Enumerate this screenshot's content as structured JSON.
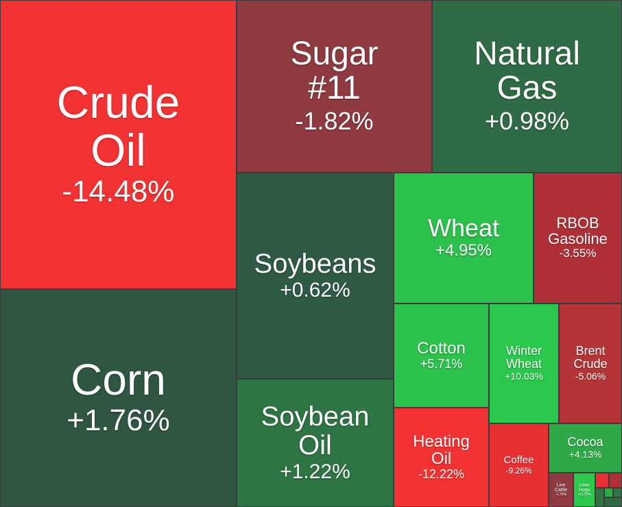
{
  "chart_data": {
    "type": "treemap",
    "categories": [
      "Crude Oil",
      "Corn",
      "Sugar #11",
      "Natural Gas",
      "Soybeans",
      "Soybean Oil",
      "Wheat",
      "RBOB Gasoline",
      "Cotton",
      "Winter Wheat",
      "Brent Crude",
      "Heating Oil",
      "Coffee",
      "Cocoa",
      "Live Cattle",
      "Lean Hogs"
    ],
    "values": [
      -14.48,
      1.76,
      -1.82,
      0.98,
      0.62,
      1.22,
      4.95,
      -3.55,
      5.71,
      10.03,
      -5.06,
      -12.22,
      -9.26,
      4.13,
      -1.76,
      11.2
    ],
    "value_labels": [
      "-14.48%",
      "+1.76%",
      "-1.82%",
      "+0.98%",
      "+0.62%",
      "+1.22%",
      "+4.95%",
      "-3.55%",
      "+5.71%",
      "+10.03%",
      "-5.06%",
      "-12.22%",
      "-9.26%",
      "+4.13%",
      "-1.76%",
      "+11.20%"
    ],
    "colors": [
      "#f33333",
      "#2e5640",
      "#8e3a40",
      "#2f6b45",
      "#2f5a44",
      "#2f7444",
      "#2cc04c",
      "#b03038",
      "#2cc24c",
      "#2ac84c",
      "#b43538",
      "#f33333",
      "#e83034",
      "#2fa848",
      "#8e3a40",
      "#2cc84c"
    ]
  }
}
